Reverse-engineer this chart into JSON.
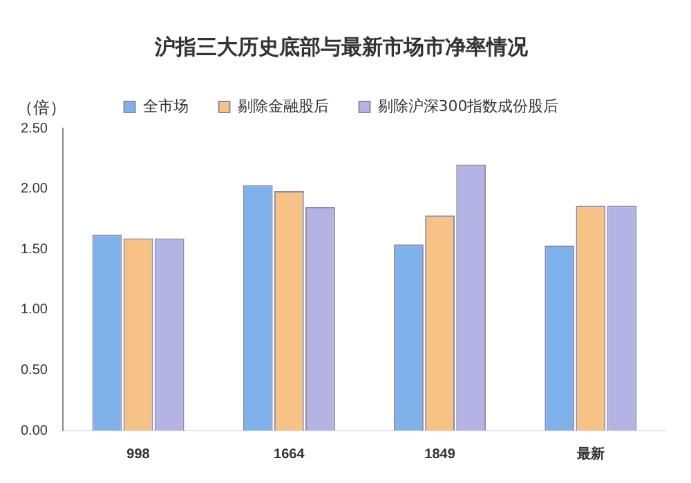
{
  "chart_data": {
    "type": "bar",
    "title": "沪指三大历史底部与最新市场市净率情况",
    "ylabel": "（倍）",
    "categories": [
      "998",
      "1664",
      "1849",
      "最新"
    ],
    "series": [
      {
        "name": "全市场",
        "color": "#7fb2ea",
        "values": [
          1.62,
          2.03,
          1.54,
          1.53
        ]
      },
      {
        "name": "剔除金融股后",
        "color": "#f6c285",
        "values": [
          1.59,
          1.98,
          1.78,
          1.86
        ]
      },
      {
        "name": "剔除沪深300指数成份股后",
        "color": "#b4b4e4",
        "values": [
          1.59,
          1.85,
          2.2,
          1.86
        ]
      }
    ],
    "ylim": [
      0,
      2.5
    ],
    "yticks": [
      {
        "value": 0,
        "label": "0.00"
      },
      {
        "value": 0.5,
        "label": "0.50"
      },
      {
        "value": 1,
        "label": "1.00"
      },
      {
        "value": 1.5,
        "label": "1.50"
      },
      {
        "value": 2,
        "label": "2.00"
      },
      {
        "value": 2.5,
        "label": "2.50"
      }
    ],
    "grid": false,
    "legend": "top"
  }
}
